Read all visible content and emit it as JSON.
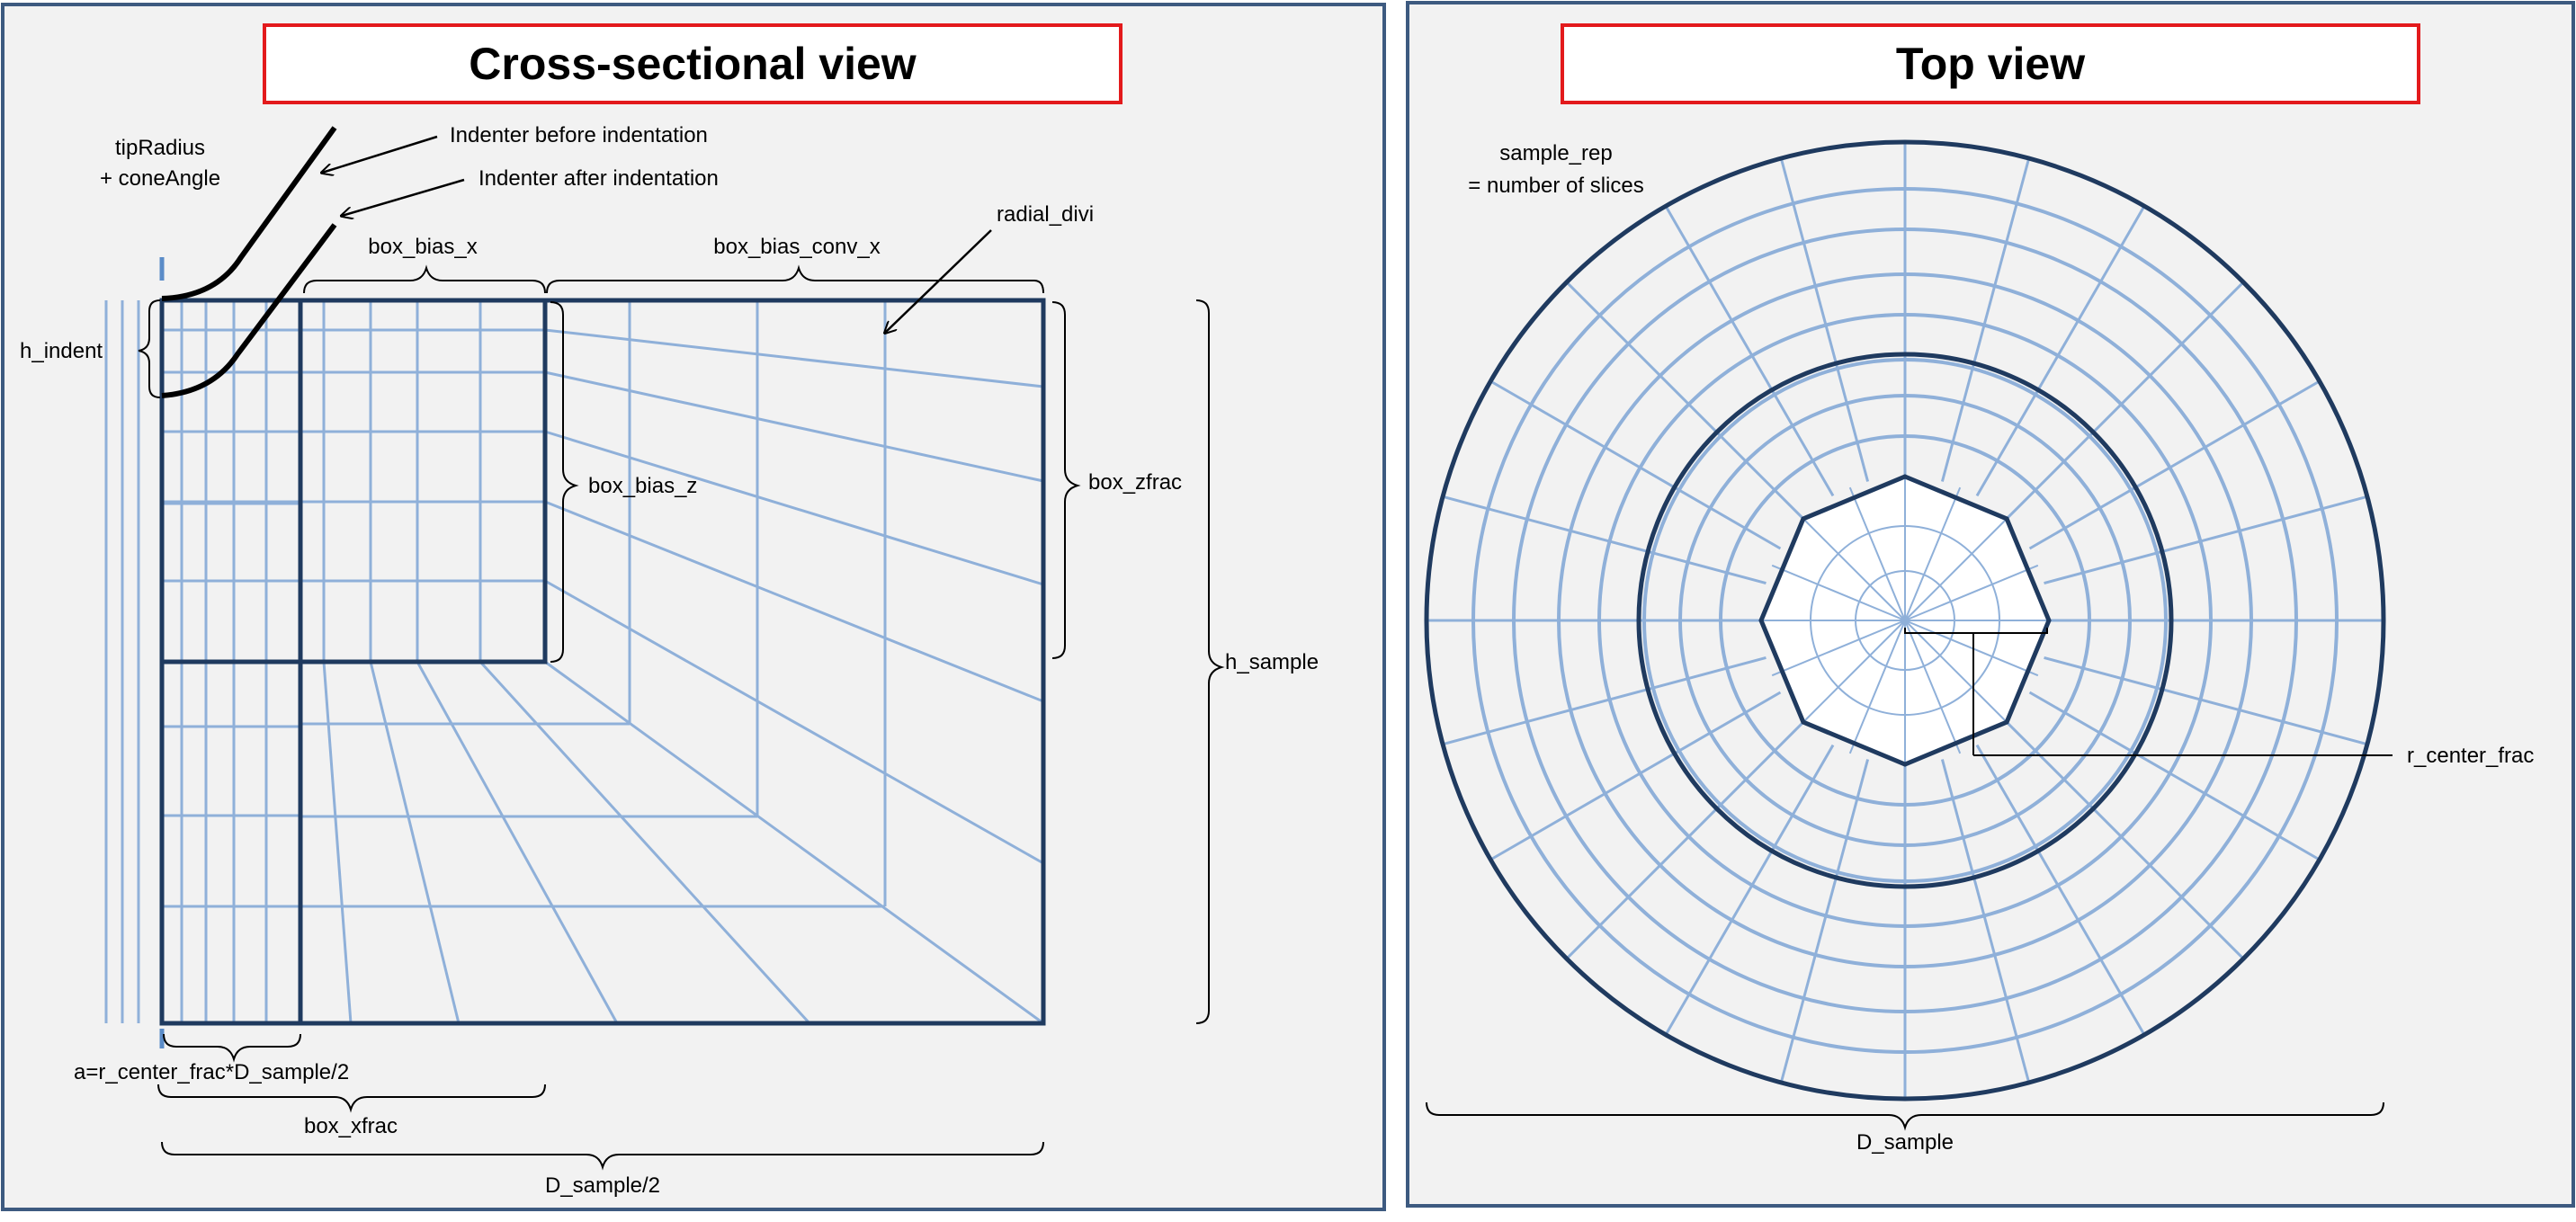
{
  "colors": {
    "panel_fill": "#f2f2f2",
    "panel_border": "#3d5a80",
    "title_border": "#e31a1c",
    "title_fill": "#ffffff",
    "dark_line": "#1f3a5f",
    "light_line": "#8fb0d9",
    "black": "#000000",
    "tick_blue": "#5b8cc8"
  },
  "left_panel": {
    "title": "Cross-sectional view",
    "labels": {
      "tip_radius": "tipRadius",
      "cone_angle": "+ coneAngle",
      "indenter_before": "Indenter before indentation",
      "indenter_after": "Indenter after indentation",
      "radial_divi": "radial_divi",
      "box_bias_x": "box_bias_x",
      "box_bias_conv_x": "box_bias_conv_x",
      "h_indent": "h_indent",
      "box_bias_z": "box_bias_z",
      "box_zfrac": "box_zfrac",
      "h_sample": "h_sample",
      "a_formula": "a=r_center_frac*D_sample/2",
      "box_xfrac": "box_xfrac",
      "d_sample_half": "D_sample/2"
    }
  },
  "right_panel": {
    "title": "Top view",
    "labels": {
      "sample_rep": "sample_rep",
      "number_of_slices": "= number of slices",
      "r_center_frac": "r_center_frac",
      "d_sample": "D_sample"
    }
  }
}
